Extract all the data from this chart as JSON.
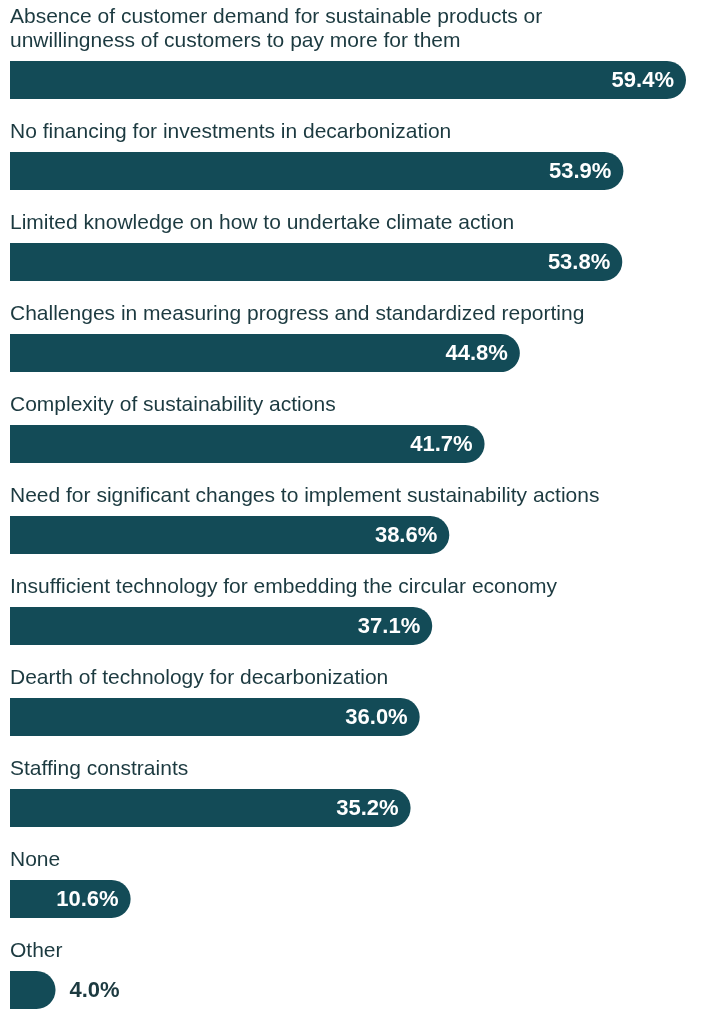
{
  "chart_data": {
    "type": "bar",
    "orientation": "horizontal",
    "categories": [
      "Absence of customer demand for sustainable products or\nunwillingness of customers to pay more for them",
      "No financing for investments in decarbonization",
      "Limited knowledge on how to undertake climate action",
      "Challenges in measuring progress and standardized reporting",
      "Complexity of sustainability actions",
      "Need for significant changes to implement sustainability actions",
      "Insufficient technology for embedding the circular economy",
      "Dearth of technology for decarbonization",
      "Staffing constraints",
      "None",
      "Other"
    ],
    "values": [
      59.4,
      53.9,
      53.8,
      44.8,
      41.7,
      38.6,
      37.1,
      36.0,
      35.2,
      10.6,
      4.0
    ],
    "value_labels": [
      "59.4%",
      "53.9%",
      "53.8%",
      "44.8%",
      "41.7%",
      "38.6%",
      "37.1%",
      "36.0%",
      "35.2%",
      "10.6%",
      "4.0%"
    ],
    "color": "#134b57"
  }
}
